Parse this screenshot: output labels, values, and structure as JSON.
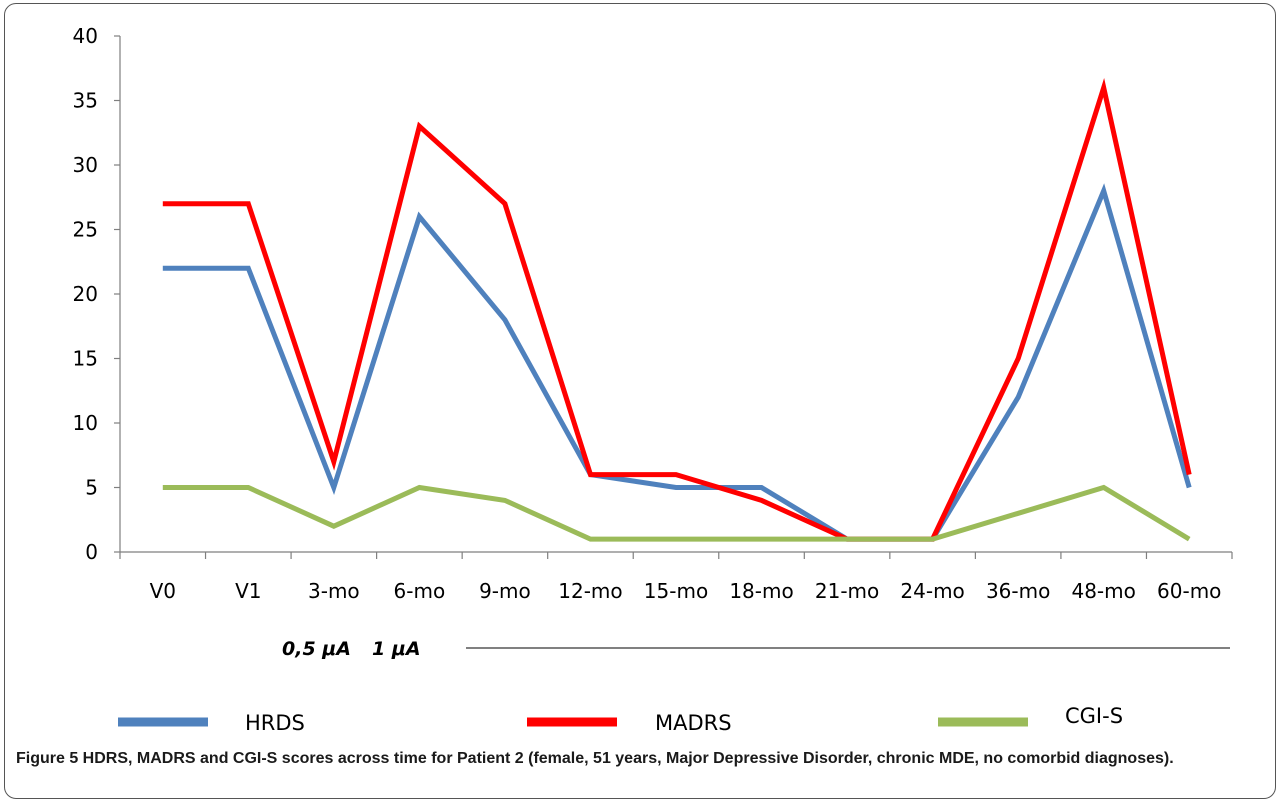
{
  "chart_data": {
    "type": "line",
    "categories": [
      "V0",
      "V1",
      "3-mo",
      "6-mo",
      "9-mo",
      "12-mo",
      "15-mo",
      "18-mo",
      "21-mo",
      "24-mo",
      "36-mo",
      "48-mo",
      "60-mo"
    ],
    "series": [
      {
        "name": "HRDS",
        "color": "#4f81bd",
        "values": [
          22,
          22,
          5,
          26,
          18,
          6,
          5,
          5,
          1,
          1,
          12,
          28,
          5
        ]
      },
      {
        "name": "MADRS",
        "color": "#ff0000",
        "values": [
          27,
          27,
          7,
          33,
          27,
          6,
          6,
          4,
          1,
          1,
          15,
          36,
          6
        ]
      },
      {
        "name": "CGI-S",
        "color": "#9bbb59",
        "values": [
          5,
          5,
          2,
          5,
          4,
          1,
          1,
          1,
          1,
          1,
          3,
          5,
          1
        ]
      }
    ],
    "ylim": [
      0,
      40
    ],
    "yticks": [
      "0",
      "5",
      "10",
      "15",
      "20",
      "25",
      "30",
      "35",
      "40"
    ],
    "annotations": {
      "current_a": "0,5 μA",
      "current_b": "1 μA"
    },
    "legend_position": "bottom",
    "grid": false
  },
  "caption": {
    "figure_label": "Figure 5",
    "text": " HDRS, MADRS and CGI-S scores across time for Patient 2 (female, 51 years, Major Depressive Disorder, chronic MDE, no comorbid diagnoses)."
  }
}
